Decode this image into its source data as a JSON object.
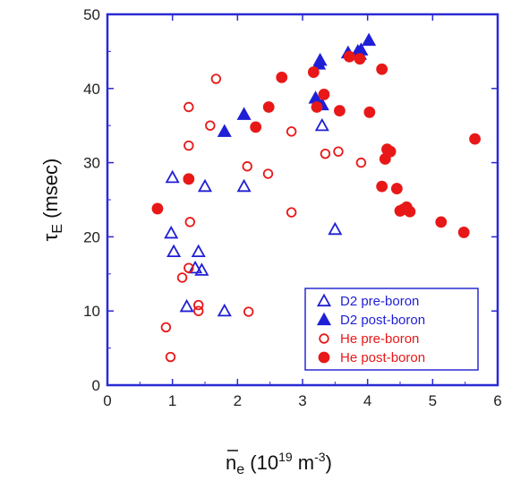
{
  "chart_data": {
    "type": "scatter",
    "title": "",
    "xlabel": {
      "symbol": "n",
      "sub": "e",
      "unit_open": " (10",
      "exp": "19",
      "unit_mid": " m",
      "exp2": "-3",
      "unit_close": ")"
    },
    "ylabel": {
      "symbol": "τ",
      "sub": "E",
      "unit": " (msec)"
    },
    "xlim": [
      0,
      6
    ],
    "ylim": [
      0,
      50
    ],
    "x_ticks": [
      0,
      1,
      2,
      3,
      4,
      5,
      6
    ],
    "y_ticks": [
      0,
      10,
      20,
      30,
      40,
      50
    ],
    "grid": false,
    "legend_position": "bottom-right",
    "series": [
      {
        "name": "D2 pre-boron",
        "marker": "triangle-open",
        "color": "#1f1fd6",
        "points": [
          [
            1.0,
            28.0
          ],
          [
            1.5,
            26.8
          ],
          [
            2.1,
            26.8
          ],
          [
            0.98,
            20.5
          ],
          [
            1.02,
            18.0
          ],
          [
            1.4,
            18.0
          ],
          [
            1.35,
            15.8
          ],
          [
            1.45,
            15.5
          ],
          [
            1.22,
            10.6
          ],
          [
            1.8,
            10.0
          ],
          [
            3.3,
            35.0
          ],
          [
            3.5,
            21.0
          ]
        ]
      },
      {
        "name": "D2 post-boron",
        "marker": "triangle-filled",
        "color": "#1f1fd6",
        "points": [
          [
            1.8,
            34.2
          ],
          [
            2.1,
            36.5
          ],
          [
            3.2,
            38.7
          ],
          [
            3.3,
            37.8
          ],
          [
            3.25,
            43.3
          ],
          [
            3.27,
            43.8
          ],
          [
            3.7,
            44.8
          ],
          [
            3.85,
            45.0
          ],
          [
            3.9,
            45.2
          ],
          [
            4.02,
            46.5
          ],
          [
            3.88,
            44.6
          ]
        ]
      },
      {
        "name": "He pre-boron",
        "marker": "circle-open",
        "color": "#e81818",
        "points": [
          [
            1.67,
            41.3
          ],
          [
            1.25,
            37.5
          ],
          [
            1.58,
            35.0
          ],
          [
            1.25,
            32.3
          ],
          [
            2.15,
            29.5
          ],
          [
            2.47,
            28.5
          ],
          [
            2.83,
            34.2
          ],
          [
            3.35,
            31.2
          ],
          [
            3.55,
            31.5
          ],
          [
            3.9,
            30.0
          ],
          [
            1.27,
            22.0
          ],
          [
            2.83,
            23.3
          ],
          [
            1.25,
            15.8
          ],
          [
            1.15,
            14.5
          ],
          [
            1.4,
            10.8
          ],
          [
            1.4,
            10.0
          ],
          [
            2.17,
            9.9
          ],
          [
            0.9,
            7.8
          ],
          [
            0.97,
            3.8
          ]
        ]
      },
      {
        "name": "He post-boron",
        "marker": "circle-filled",
        "color": "#e81818",
        "points": [
          [
            0.77,
            23.8
          ],
          [
            1.25,
            27.8
          ],
          [
            2.28,
            34.8
          ],
          [
            2.48,
            37.5
          ],
          [
            2.68,
            41.5
          ],
          [
            3.17,
            42.2
          ],
          [
            3.22,
            37.5
          ],
          [
            3.33,
            39.2
          ],
          [
            3.57,
            37.0
          ],
          [
            3.72,
            44.3
          ],
          [
            3.88,
            44.0
          ],
          [
            4.03,
            36.8
          ],
          [
            4.22,
            42.6
          ],
          [
            4.27,
            30.5
          ],
          [
            4.3,
            31.8
          ],
          [
            4.35,
            31.5
          ],
          [
            4.22,
            26.8
          ],
          [
            4.45,
            26.5
          ],
          [
            4.5,
            23.5
          ],
          [
            4.55,
            23.7
          ],
          [
            4.6,
            24.0
          ],
          [
            4.65,
            23.4
          ],
          [
            5.13,
            22.0
          ],
          [
            5.48,
            20.6
          ],
          [
            5.65,
            33.2
          ]
        ]
      }
    ]
  }
}
